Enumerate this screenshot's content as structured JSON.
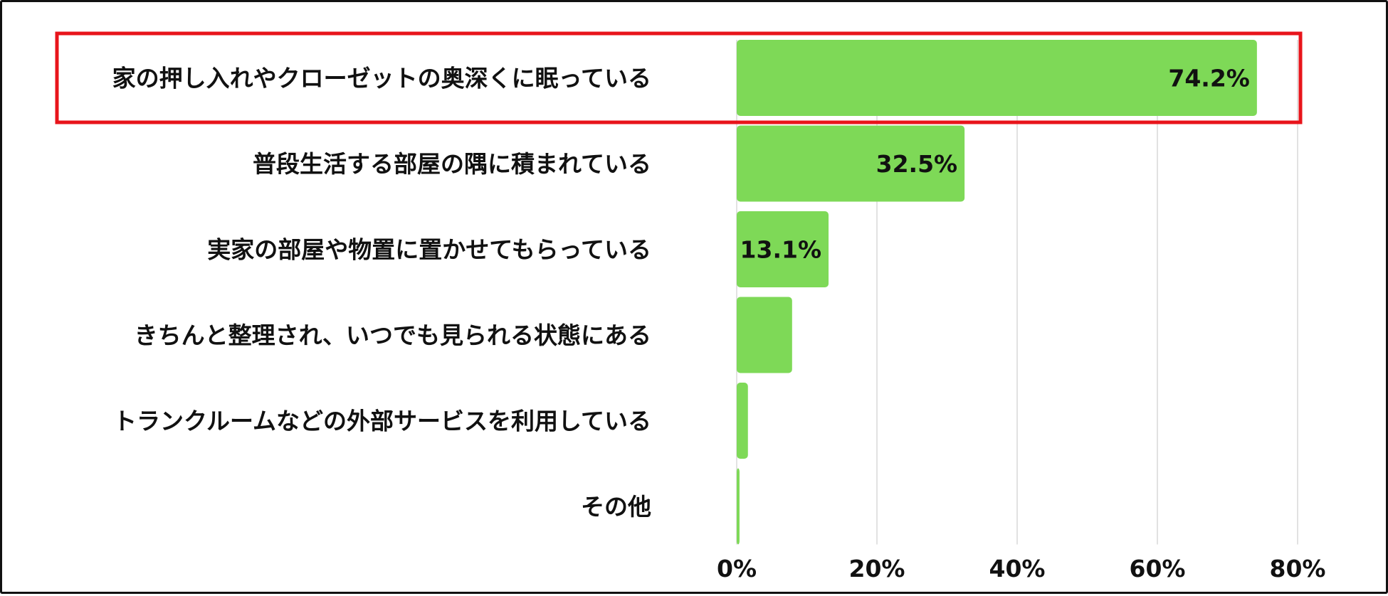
{
  "chart_data": {
    "type": "bar",
    "orientation": "horizontal",
    "categories": [
      "家の押し入れやクローゼットの奥深くに眠っている",
      "普段生活する部屋の隅に積まれている",
      "実家の部屋や物置に置かせてもらっている",
      "きちんと整理され、いつでも見られる状態にある",
      "トランクルームなどの外部サービスを利用している",
      "その他"
    ],
    "values": [
      74.2,
      32.5,
      13.1,
      7.9,
      1.6,
      0.4
    ],
    "data_labels": [
      "74.2%",
      "32.5%",
      "13.1%",
      "",
      "",
      ""
    ],
    "x_ticks": [
      "0%",
      "20%",
      "40%",
      "60%",
      "80%"
    ],
    "xlim": [
      0,
      80
    ],
    "title": "",
    "xlabel": "",
    "ylabel": "",
    "grid": "vertical",
    "highlighted_category_index": 0,
    "colors": {
      "bar": "#7ed957",
      "grid": "#d9d9d9",
      "highlight_border": "#e8141b",
      "text": "#111111",
      "frame": "#111111"
    }
  }
}
